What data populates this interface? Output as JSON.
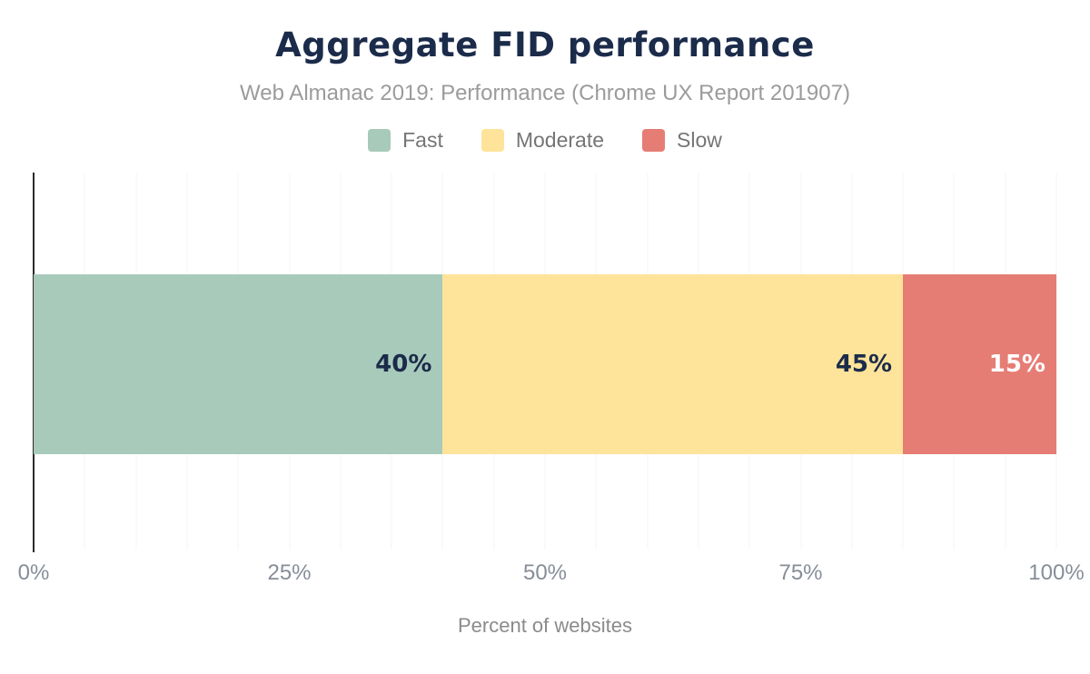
{
  "header": {
    "title": "Aggregate FID performance",
    "subtitle": "Web Almanac 2019: Performance (Chrome UX Report 201907)"
  },
  "chart_data": {
    "type": "bar",
    "orientation": "horizontal",
    "stacked": true,
    "title": "Aggregate FID performance",
    "subtitle": "Web Almanac 2019: Performance (Chrome UX Report 201907)",
    "xlabel": "Percent of websites",
    "xlim": [
      0,
      100
    ],
    "grid_step": 5,
    "grid": true,
    "legend_position": "top",
    "xticks": [
      {
        "label": "0%",
        "value": 0
      },
      {
        "label": "25%",
        "value": 25
      },
      {
        "label": "50%",
        "value": 50
      },
      {
        "label": "75%",
        "value": 75
      },
      {
        "label": "100%",
        "value": 100
      }
    ],
    "series": [
      {
        "name": "Fast",
        "value": 40,
        "data_label": "40%",
        "color": "#a8cabb",
        "label_color": "#1b2b4a"
      },
      {
        "name": "Moderate",
        "value": 45,
        "data_label": "45%",
        "color": "#fee39a",
        "label_color": "#1b2b4a"
      },
      {
        "name": "Slow",
        "value": 15,
        "data_label": "15%",
        "color": "#e67d75",
        "label_color": "#ffffff"
      }
    ]
  },
  "colors": {
    "background": "#ffffff",
    "title_text": "#1b2b4a",
    "subtitle_text": "#9b9b9b",
    "legend_text": "#757575",
    "tick_text": "#878e98",
    "axis_label_text": "#8b8b8b",
    "axis_line": "#2b2b2b",
    "gridline": "#f4f4f4"
  }
}
